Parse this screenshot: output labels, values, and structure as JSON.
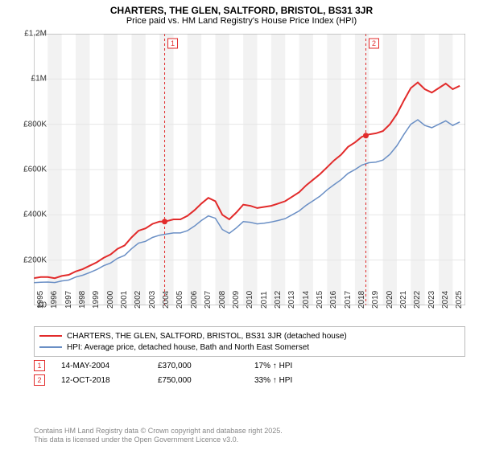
{
  "title": "CHARTERS, THE GLEN, SALTFORD, BRISTOL, BS31 3JR",
  "subtitle": "Price paid vs. HM Land Registry's House Price Index (HPI)",
  "chart": {
    "type": "line",
    "background_color": "#ffffff",
    "band_color": "#f2f2f2",
    "grid_color": "#e6e6e6",
    "axis_color": "#999999",
    "xlim": [
      1995,
      2025.9
    ],
    "ylim": [
      0,
      1200000
    ],
    "yticks": [
      0,
      200000,
      400000,
      600000,
      800000,
      1000000,
      1200000
    ],
    "ytick_labels": [
      "£0",
      "£200K",
      "£400K",
      "£600K",
      "£800K",
      "£1M",
      "£1.2M"
    ],
    "xticks": [
      1995,
      1996,
      1997,
      1998,
      1999,
      2000,
      2001,
      2002,
      2003,
      2004,
      2005,
      2006,
      2007,
      2008,
      2009,
      2010,
      2011,
      2012,
      2013,
      2014,
      2015,
      2016,
      2017,
      2018,
      2019,
      2020,
      2021,
      2022,
      2023,
      2024,
      2025
    ],
    "series": [
      {
        "name": "CHARTERS, THE GLEN, SALTFORD, BRISTOL, BS31 3JR (detached house)",
        "color": "#e22b2b",
        "line_width": 2,
        "data": [
          [
            1995,
            120000
          ],
          [
            1995.5,
            125000
          ],
          [
            1996,
            125000
          ],
          [
            1996.5,
            120000
          ],
          [
            1997,
            130000
          ],
          [
            1997.5,
            135000
          ],
          [
            1998,
            150000
          ],
          [
            1998.5,
            160000
          ],
          [
            1999,
            175000
          ],
          [
            1999.5,
            190000
          ],
          [
            2000,
            210000
          ],
          [
            2000.5,
            225000
          ],
          [
            2001,
            250000
          ],
          [
            2001.5,
            265000
          ],
          [
            2002,
            300000
          ],
          [
            2002.5,
            330000
          ],
          [
            2003,
            340000
          ],
          [
            2003.5,
            360000
          ],
          [
            2004,
            370000
          ],
          [
            2004.37,
            370000
          ],
          [
            2004.7,
            375000
          ],
          [
            2005,
            380000
          ],
          [
            2005.5,
            380000
          ],
          [
            2006,
            395000
          ],
          [
            2006.5,
            420000
          ],
          [
            2007,
            450000
          ],
          [
            2007.5,
            475000
          ],
          [
            2008,
            460000
          ],
          [
            2008.5,
            400000
          ],
          [
            2009,
            380000
          ],
          [
            2009.5,
            410000
          ],
          [
            2010,
            445000
          ],
          [
            2010.5,
            440000
          ],
          [
            2011,
            430000
          ],
          [
            2011.5,
            435000
          ],
          [
            2012,
            440000
          ],
          [
            2012.5,
            450000
          ],
          [
            2013,
            460000
          ],
          [
            2013.5,
            480000
          ],
          [
            2014,
            500000
          ],
          [
            2014.5,
            530000
          ],
          [
            2015,
            555000
          ],
          [
            2015.5,
            580000
          ],
          [
            2016,
            610000
          ],
          [
            2016.5,
            640000
          ],
          [
            2017,
            665000
          ],
          [
            2017.5,
            700000
          ],
          [
            2018,
            720000
          ],
          [
            2018.5,
            745000
          ],
          [
            2018.78,
            750000
          ],
          [
            2019,
            755000
          ],
          [
            2019.5,
            760000
          ],
          [
            2020,
            770000
          ],
          [
            2020.5,
            800000
          ],
          [
            2021,
            845000
          ],
          [
            2021.5,
            905000
          ],
          [
            2022,
            960000
          ],
          [
            2022.5,
            985000
          ],
          [
            2023,
            955000
          ],
          [
            2023.5,
            940000
          ],
          [
            2024,
            960000
          ],
          [
            2024.5,
            980000
          ],
          [
            2025,
            955000
          ],
          [
            2025.5,
            970000
          ]
        ]
      },
      {
        "name": "HPI: Average price, detached house, Bath and North East Somerset",
        "color": "#6a8fc5",
        "line_width": 1.5,
        "data": [
          [
            1995,
            100000
          ],
          [
            1995.5,
            102000
          ],
          [
            1996,
            103000
          ],
          [
            1996.5,
            101000
          ],
          [
            1997,
            108000
          ],
          [
            1997.5,
            112000
          ],
          [
            1998,
            125000
          ],
          [
            1998.5,
            133000
          ],
          [
            1999,
            145000
          ],
          [
            1999.5,
            158000
          ],
          [
            2000,
            175000
          ],
          [
            2000.5,
            187000
          ],
          [
            2001,
            208000
          ],
          [
            2001.5,
            221000
          ],
          [
            2002,
            250000
          ],
          [
            2002.5,
            275000
          ],
          [
            2003,
            283000
          ],
          [
            2003.5,
            300000
          ],
          [
            2004,
            310000
          ],
          [
            2004.5,
            315000
          ],
          [
            2005,
            320000
          ],
          [
            2005.5,
            320000
          ],
          [
            2006,
            330000
          ],
          [
            2006.5,
            350000
          ],
          [
            2007,
            375000
          ],
          [
            2007.5,
            395000
          ],
          [
            2008,
            385000
          ],
          [
            2008.5,
            335000
          ],
          [
            2009,
            318000
          ],
          [
            2009.5,
            342000
          ],
          [
            2010,
            370000
          ],
          [
            2010.5,
            367000
          ],
          [
            2011,
            360000
          ],
          [
            2011.5,
            363000
          ],
          [
            2012,
            368000
          ],
          [
            2012.5,
            375000
          ],
          [
            2013,
            383000
          ],
          [
            2013.5,
            400000
          ],
          [
            2014,
            417000
          ],
          [
            2014.5,
            442000
          ],
          [
            2015,
            462000
          ],
          [
            2015.5,
            483000
          ],
          [
            2016,
            510000
          ],
          [
            2016.5,
            533000
          ],
          [
            2017,
            555000
          ],
          [
            2017.5,
            583000
          ],
          [
            2018,
            600000
          ],
          [
            2018.5,
            620000
          ],
          [
            2019,
            630000
          ],
          [
            2019.5,
            633000
          ],
          [
            2020,
            642000
          ],
          [
            2020.5,
            667000
          ],
          [
            2021,
            705000
          ],
          [
            2021.5,
            755000
          ],
          [
            2022,
            800000
          ],
          [
            2022.5,
            820000
          ],
          [
            2023,
            795000
          ],
          [
            2023.5,
            785000
          ],
          [
            2024,
            800000
          ],
          [
            2024.5,
            815000
          ],
          [
            2025,
            795000
          ],
          [
            2025.5,
            810000
          ]
        ]
      }
    ],
    "markers": [
      {
        "label": "1",
        "color": "#e22b2b",
        "x": 2004.37,
        "y": 370000,
        "line": true
      },
      {
        "label": "2",
        "color": "#e22b2b",
        "x": 2018.78,
        "y": 750000,
        "line": true
      }
    ],
    "event_table": [
      {
        "label": "1",
        "date": "14-MAY-2004",
        "price": "£370,000",
        "delta": "17% ↑ HPI"
      },
      {
        "label": "2",
        "date": "12-OCT-2018",
        "price": "£750,000",
        "delta": "33% ↑ HPI"
      }
    ]
  },
  "footer_line1": "Contains HM Land Registry data © Crown copyright and database right 2025.",
  "footer_line2": "This data is licensed under the Open Government Licence v3.0."
}
